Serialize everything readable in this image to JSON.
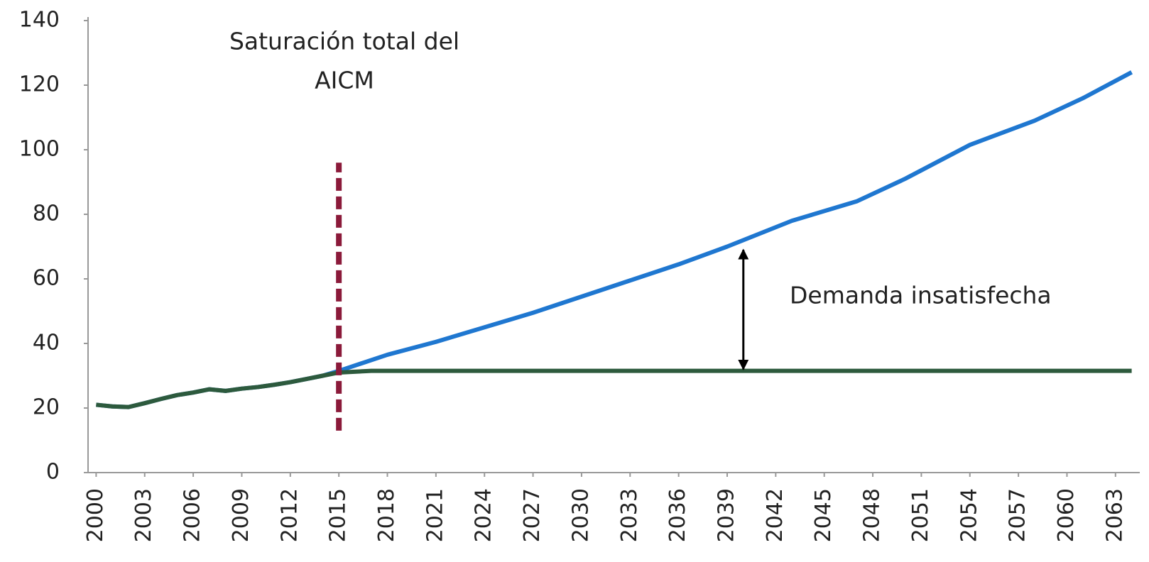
{
  "chart_data": {
    "type": "line",
    "xlim": [
      1999.5,
      2064.5
    ],
    "xticks": [
      2000,
      2003,
      2006,
      2009,
      2012,
      2015,
      2018,
      2021,
      2024,
      2027,
      2030,
      2033,
      2036,
      2039,
      2042,
      2045,
      2048,
      2051,
      2054,
      2057,
      2060,
      2063
    ],
    "ylim": [
      0,
      140
    ],
    "yticks": [
      0,
      20,
      40,
      60,
      80,
      100,
      120,
      140
    ],
    "grid": false,
    "series": [
      {
        "color": "#1f77d0",
        "x": [
          2000,
          2001,
          2002,
          2003,
          2004,
          2005,
          2006,
          2007,
          2008,
          2009,
          2010,
          2011,
          2012,
          2013,
          2014,
          2015,
          2018,
          2021,
          2024,
          2027,
          2030,
          2033,
          2036,
          2039,
          2043,
          2047,
          2050,
          2054,
          2058,
          2061,
          2064
        ],
        "values": [
          21,
          20.5,
          20.3,
          21.5,
          22.8,
          24,
          24.8,
          25.8,
          25.3,
          26,
          26.5,
          27.2,
          28,
          29,
          30,
          31.5,
          36.5,
          40.5,
          45,
          49.5,
          54.5,
          59.5,
          64.5,
          70,
          78,
          84,
          91,
          101.5,
          109,
          116,
          124
        ]
      },
      {
        "color": "#2d5a3d",
        "x": [
          2000,
          2001,
          2002,
          2003,
          2004,
          2005,
          2006,
          2007,
          2008,
          2009,
          2010,
          2011,
          2012,
          2013,
          2014,
          2015,
          2017,
          2064
        ],
        "values": [
          21,
          20.5,
          20.3,
          21.5,
          22.8,
          24,
          24.8,
          25.8,
          25.3,
          26,
          26.5,
          27.2,
          28,
          29,
          30,
          31,
          31.5,
          31.5
        ]
      }
    ],
    "vline": {
      "x": 2015,
      "y": [
        13,
        96
      ],
      "color": "#8b1a3a"
    },
    "arrow": {
      "x": 2040,
      "y": [
        32,
        69
      ]
    },
    "annotations": [
      {
        "lines": [
          "Saturación total del",
          "AICM"
        ]
      },
      {
        "lines": [
          "Demanda insatisfecha"
        ]
      }
    ]
  }
}
